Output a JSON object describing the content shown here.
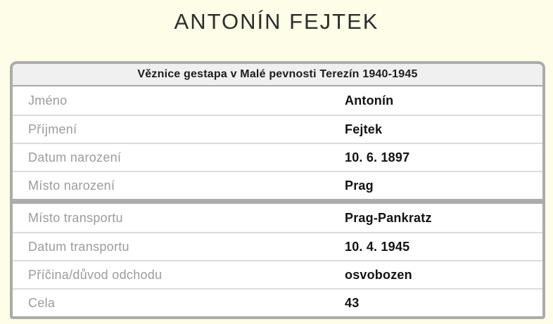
{
  "page_title": "ANTONÍN FEJTEK",
  "table": {
    "header": "Věznice gestapa v Malé pevnosti Terezín 1940-1945",
    "rows": [
      {
        "label": "Jméno",
        "value": "Antonín"
      },
      {
        "label": "Příjmení",
        "value": "Fejtek"
      },
      {
        "label": "Datum narození",
        "value": "10. 6. 1897"
      },
      {
        "label": "Místo narození",
        "value": "Prag"
      },
      {
        "label": "Místo transportu",
        "value": "Prag-Pankratz"
      },
      {
        "label": "Datum transportu",
        "value": "10. 4. 1945"
      },
      {
        "label": "Příčina/důvod odchodu",
        "value": "osvobozen"
      },
      {
        "label": "Cela",
        "value": "43"
      }
    ]
  },
  "colors": {
    "page_background": "#FEFDE8",
    "card_border": "#ABABAB",
    "header_background": "#F0F0F0",
    "row_divider": "#DCDCDC",
    "section_divider": "#ACACAC",
    "label_text": "#9C9C9C",
    "value_text": "#121212",
    "title_text": "#2D2D2D"
  }
}
